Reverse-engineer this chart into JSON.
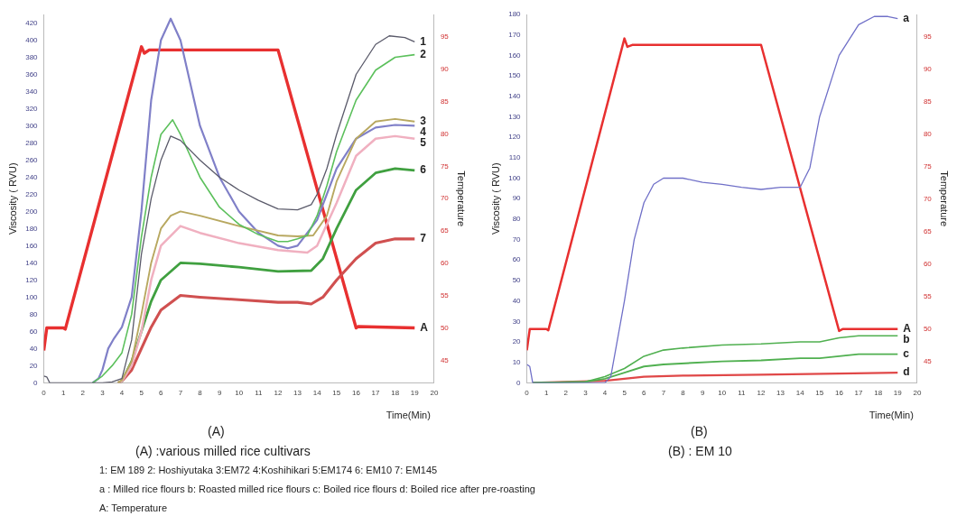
{
  "chart_data": [
    {
      "type": "line",
      "xlabel": "Time(Min)",
      "ylabel": "Viscosity ( RVU)",
      "y2label": "Temperature",
      "xlim": [
        0,
        20
      ],
      "xticks": [
        0,
        1,
        2,
        3,
        4,
        5,
        6,
        7,
        8,
        9,
        10,
        11,
        12,
        13,
        14,
        15,
        16,
        17,
        18,
        19,
        20
      ],
      "ylim": [
        0,
        430
      ],
      "yticks": [
        0,
        20,
        40,
        60,
        80,
        100,
        120,
        140,
        160,
        180,
        200,
        220,
        240,
        260,
        280,
        300,
        320,
        340,
        360,
        380,
        400,
        420
      ],
      "y2lim": [
        41.5,
        98.5
      ],
      "y2ticks": [
        45,
        50,
        55,
        60,
        65,
        70,
        75,
        80,
        85,
        90,
        95
      ],
      "grid": false,
      "legend": false,
      "marker": "none",
      "annotations": [
        "(A)",
        "(A) :various milled rice cultivars",
        "1: EM 189 2: Hoshiyutaka 3:EM72 4:Koshihikari 5:EM174 6: EM10 7: EM145",
        "a : Milled rice flours b: Roasted milled rice flours c: Boiled rice flours d: Boiled rice after pre-roasting",
        "A: Temperature"
      ],
      "series": [
        {
          "name": "1",
          "color": "#5a5a6a",
          "x": [
            0,
            0.15,
            0.3,
            3,
            3.5,
            4,
            4.5,
            5,
            5.5,
            6,
            6.5,
            7,
            8,
            9,
            10,
            11,
            12,
            13,
            13.7,
            14,
            14.5,
            15,
            16,
            17,
            17.7,
            18.5,
            19
          ],
          "values": [
            8,
            7,
            0,
            0,
            1,
            5,
            50,
            150,
            215,
            260,
            288,
            283,
            260,
            240,
            225,
            213,
            203,
            202,
            208,
            220,
            250,
            290,
            360,
            395,
            405,
            403,
            398
          ]
        },
        {
          "name": "2",
          "color": "#5cc05c",
          "x": [
            2.5,
            3,
            3.5,
            4,
            4.5,
            5,
            5.5,
            6,
            6.6,
            7,
            8,
            9,
            10,
            11,
            12,
            12.5,
            13,
            13.5,
            14,
            14.5,
            15,
            16,
            17,
            18,
            19
          ],
          "values": [
            0,
            8,
            20,
            35,
            80,
            170,
            240,
            290,
            307,
            290,
            240,
            205,
            185,
            173,
            165,
            165,
            168,
            172,
            195,
            230,
            270,
            330,
            365,
            380,
            383
          ]
        },
        {
          "name": "3",
          "color": "#b8a860",
          "x": [
            3.8,
            4,
            4.5,
            5,
            5.5,
            6,
            6.5,
            7,
            8,
            10,
            12,
            13,
            13.8,
            14.5,
            15,
            16,
            17,
            18,
            19
          ],
          "values": [
            0,
            3,
            25,
            80,
            140,
            180,
            195,
            200,
            195,
            183,
            172,
            171,
            172,
            195,
            235,
            285,
            305,
            308,
            305
          ]
        },
        {
          "name": "4",
          "color": "#8080c8",
          "x": [
            2.5,
            2.8,
            3,
            3.3,
            3.6,
            4,
            4.5,
            5,
            5.5,
            6,
            6.5,
            7,
            7.5,
            8,
            9,
            10,
            11,
            12,
            12.5,
            13,
            14,
            15,
            16,
            17,
            18,
            19
          ],
          "values": [
            0,
            5,
            15,
            40,
            52,
            65,
            100,
            200,
            330,
            400,
            425,
            400,
            350,
            300,
            240,
            200,
            175,
            160,
            157,
            160,
            190,
            250,
            285,
            298,
            301,
            300
          ]
        },
        {
          "name": "5",
          "color": "#f0b0c0",
          "x": [
            3.8,
            4,
            4.5,
            5,
            5.5,
            6,
            7,
            8,
            10,
            12,
            13.5,
            14,
            15,
            16,
            17,
            18,
            19
          ],
          "values": [
            0,
            2,
            20,
            60,
            120,
            160,
            183,
            175,
            163,
            155,
            152,
            160,
            210,
            265,
            285,
            288,
            285
          ]
        },
        {
          "name": "6",
          "color": "#40a040",
          "x": [
            3.8,
            4,
            4.5,
            5,
            5.5,
            6,
            7,
            8,
            10,
            12,
            13.7,
            14.3,
            15,
            16,
            17,
            18,
            19
          ],
          "values": [
            0,
            2,
            25,
            60,
            95,
            120,
            140,
            139,
            135,
            130,
            131,
            145,
            180,
            225,
            245,
            250,
            248
          ]
        },
        {
          "name": "7",
          "color": "#d05050",
          "x": [
            3.8,
            4,
            4.5,
            5,
            5.5,
            6,
            7,
            8,
            10,
            12,
            13,
            13.7,
            14.3,
            15,
            16,
            17,
            18,
            19
          ],
          "values": [
            0,
            2,
            15,
            40,
            65,
            85,
            102,
            100,
            97,
            94,
            94,
            92,
            100,
            120,
            145,
            163,
            168,
            168
          ]
        },
        {
          "name": "A",
          "color": "#e83030",
          "axis": "y2",
          "x": [
            0,
            0.15,
            1,
            1.1,
            5,
            5.15,
            5.4,
            12,
            16,
            16.1,
            19
          ],
          "values": [
            46.5,
            50,
            50,
            49.8,
            93.5,
            92.5,
            93,
            93,
            50,
            50.2,
            50
          ]
        }
      ]
    },
    {
      "type": "line",
      "xlabel": "Time(Min)",
      "ylabel": "Viscosity ( RVU)",
      "y2label": "Temperature",
      "xlim": [
        0,
        20
      ],
      "xticks": [
        0,
        1,
        2,
        3,
        4,
        5,
        6,
        7,
        8,
        9,
        10,
        11,
        12,
        13,
        14,
        15,
        16,
        17,
        18,
        19,
        20
      ],
      "ylim": [
        0,
        180
      ],
      "yticks": [
        0,
        10,
        20,
        30,
        40,
        50,
        60,
        70,
        80,
        90,
        100,
        110,
        120,
        130,
        140,
        150,
        160,
        170,
        180
      ],
      "y2lim": [
        41.7,
        98.5
      ],
      "y2ticks": [
        45,
        50,
        55,
        60,
        65,
        70,
        75,
        80,
        85,
        90,
        95
      ],
      "grid": false,
      "legend": false,
      "marker": "none",
      "annotations": [
        "(B)",
        "(B) : EM 10"
      ],
      "series": [
        {
          "name": "a",
          "color": "#7070c8",
          "x": [
            0,
            0.15,
            0.3,
            4,
            4.3,
            5,
            5.5,
            6,
            6.5,
            7,
            7.5,
            8,
            9,
            10,
            11,
            12,
            13,
            14,
            14.5,
            15,
            16,
            17,
            17.8,
            18.5,
            19
          ],
          "values": [
            9,
            8,
            0,
            0,
            3,
            40,
            70,
            88,
            97,
            100,
            100,
            100,
            98,
            97,
            95.5,
            94.5,
            95.5,
            95.5,
            105,
            130,
            160,
            175,
            179,
            179,
            178
          ]
        },
        {
          "name": "b",
          "color": "#50b050",
          "x": [
            0.3,
            3,
            4,
            5,
            6,
            7,
            8,
            10,
            12,
            14,
            15,
            16,
            17,
            19
          ],
          "values": [
            0,
            0.5,
            3,
            7,
            13,
            16,
            17,
            18.5,
            19,
            20,
            20,
            22,
            23,
            23
          ]
        },
        {
          "name": "c",
          "color": "#50b050",
          "x": [
            0.3,
            3,
            4,
            5,
            6,
            7,
            10,
            12,
            14,
            15,
            16,
            17,
            19
          ],
          "values": [
            0,
            0.5,
            2,
            5,
            8,
            9,
            10.5,
            11,
            12,
            12,
            13,
            14,
            14
          ]
        },
        {
          "name": "d",
          "color": "#e04848",
          "x": [
            0.3,
            4,
            5,
            6,
            8,
            12,
            16,
            19
          ],
          "values": [
            0,
            1,
            2,
            3,
            3.5,
            4,
            4.5,
            5
          ]
        },
        {
          "name": "A",
          "color": "#e83030",
          "axis": "y2",
          "x": [
            0,
            0.15,
            1,
            1.1,
            5,
            5.15,
            5.4,
            12,
            16,
            16.2,
            19
          ],
          "values": [
            46.7,
            50,
            50,
            49.8,
            94.8,
            93.5,
            93.8,
            93.8,
            49.7,
            50,
            50
          ]
        }
      ]
    }
  ]
}
